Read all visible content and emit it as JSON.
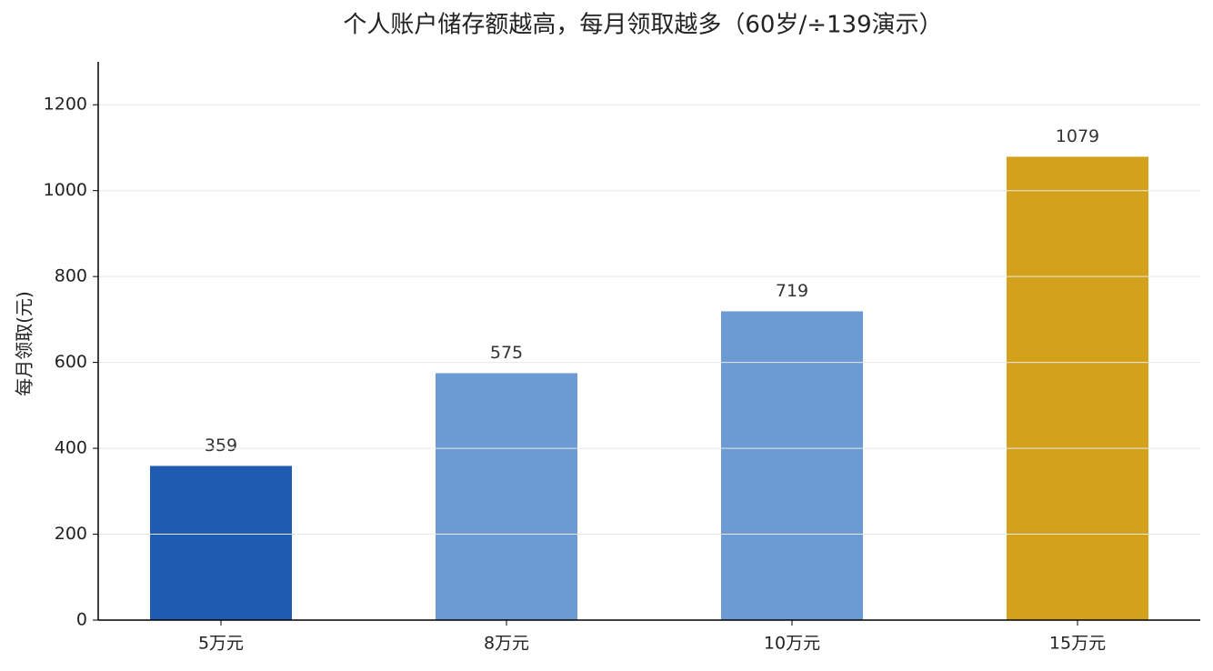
{
  "chart_data": {
    "type": "bar",
    "title": "个人账户储存额越高，每月领取越多（60岁/÷139演示）",
    "y_label": "每月领取(元)",
    "categories": [
      "5万元",
      "8万元",
      "10万元",
      "15万元"
    ],
    "values": [
      359,
      575,
      719,
      1079
    ],
    "colors": [
      "#1f5bb0",
      "#6b9bd2",
      "#6b9bd2",
      "#d4a11c"
    ],
    "ylim": [
      0,
      1300
    ],
    "yticks": [
      0,
      200,
      400,
      600,
      800,
      1000,
      1200
    ],
    "grid": true
  }
}
